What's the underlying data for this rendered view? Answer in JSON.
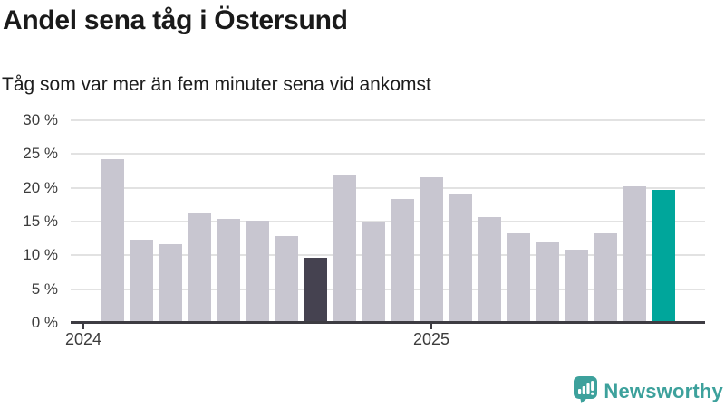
{
  "header": {
    "title": "Andel sena tåg i Östersund",
    "subtitle": "Tåg som var mer än fem minuter sena vid ankomst"
  },
  "chart_data": {
    "type": "bar",
    "title": "Andel sena tåg i Östersund",
    "subtitle": "Tåg som var mer än fem minuter sena vid ankomst",
    "unit": "%",
    "values": [
      24.2,
      12.3,
      11.7,
      16.4,
      15.4,
      15.1,
      12.9,
      9.7,
      22.0,
      14.9,
      18.4,
      21.6,
      19.0,
      15.7,
      13.3,
      11.9,
      10.9,
      13.3,
      20.2,
      19.7
    ],
    "highlight_dark_index": 7,
    "highlight_latest_index": 19,
    "ylim": [
      0,
      30
    ],
    "yticks": [
      {
        "value": 0,
        "label": "0 %"
      },
      {
        "value": 5,
        "label": "5 %"
      },
      {
        "value": 10,
        "label": "10 %"
      },
      {
        "value": 15,
        "label": "15 %"
      },
      {
        "value": 20,
        "label": "20 %"
      },
      {
        "value": 25,
        "label": "25 %"
      },
      {
        "value": 30,
        "label": "30 %"
      }
    ],
    "xticks": [
      {
        "label": "2024",
        "slot": 0
      },
      {
        "label": "2025",
        "slot": 12
      }
    ],
    "grid": true,
    "legend": "none",
    "colors": {
      "bar_default": "#c8c6d0",
      "bar_dark": "#454250",
      "bar_highlight": "#00a69b",
      "gridline": "#e2e2e2",
      "axis": "#3d3c42",
      "tick_text": "#3c3c3c"
    }
  },
  "branding": {
    "logo_text": "Newsworthy",
    "logo_color": "#3da19c"
  }
}
